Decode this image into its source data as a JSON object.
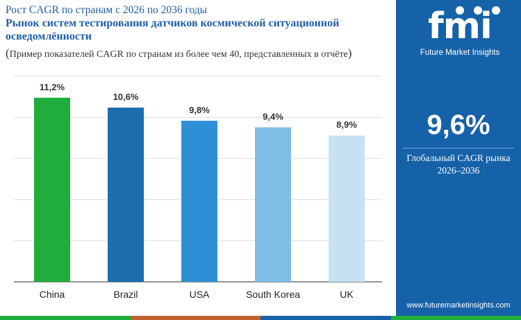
{
  "header": {
    "title_line1": "Рост CAGR по странам с 2026 по 2036 годы",
    "title_line2": "Рынок систем тестирования датчиков космической ситуационной",
    "title_line3": "осведомлённости",
    "subtitle_open": "(",
    "subtitle": "Пример показателей CAGR по странам из более чем 40, представленных в отчёте",
    "subtitle_close": ")"
  },
  "sidebar": {
    "logo_text": "fmi",
    "logo_caption": "Future Market Insights",
    "global_value": "9,6%",
    "global_label_line1": "Глобальный CAGR рынка",
    "global_label_line2": "2026–2036",
    "website": "www.futuremarketinsights.com",
    "background_color": "#1662a9"
  },
  "chart_data": {
    "type": "bar",
    "categories": [
      "China",
      "Brazil",
      "USA",
      "South Korea",
      "UK"
    ],
    "values": [
      11.2,
      10.6,
      9.8,
      9.4,
      8.9
    ],
    "value_labels": [
      "11,2%",
      "10,6%",
      "9,8%",
      "9,4%",
      "8,9%"
    ],
    "colors": [
      "#1fae3d",
      "#1c6ead",
      "#2f8fd6",
      "#80bde6",
      "#c5e2f3"
    ],
    "title": "",
    "xlabel": "",
    "ylabel": "",
    "ylim": [
      0,
      12.5
    ],
    "gridlines": [
      0,
      2.5,
      5,
      7.5,
      10,
      12.5
    ],
    "grid": true,
    "legend": "none"
  },
  "bottom_strip_colors": [
    "#1fae3d",
    "#c0622b",
    "#1662a9",
    "#1fae3d"
  ]
}
